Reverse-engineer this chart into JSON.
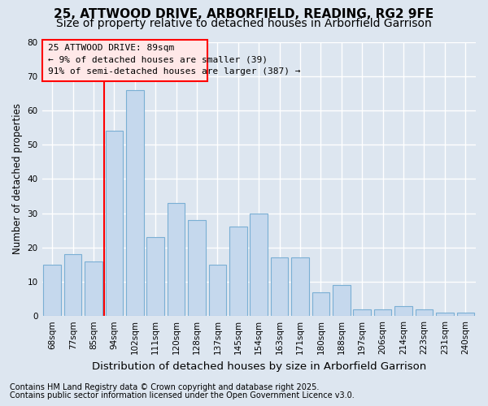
{
  "title": "25, ATTWOOD DRIVE, ARBORFIELD, READING, RG2 9FE",
  "subtitle": "Size of property relative to detached houses in Arborfield Garrison",
  "xlabel": "Distribution of detached houses by size in Arborfield Garrison",
  "ylabel": "Number of detached properties",
  "footnote1": "Contains HM Land Registry data © Crown copyright and database right 2025.",
  "footnote2": "Contains public sector information licensed under the Open Government Licence v3.0.",
  "categories": [
    "68sqm",
    "77sqm",
    "85sqm",
    "94sqm",
    "102sqm",
    "111sqm",
    "120sqm",
    "128sqm",
    "137sqm",
    "145sqm",
    "154sqm",
    "163sqm",
    "171sqm",
    "180sqm",
    "188sqm",
    "197sqm",
    "206sqm",
    "214sqm",
    "223sqm",
    "231sqm",
    "240sqm"
  ],
  "values": [
    15,
    18,
    16,
    54,
    66,
    23,
    33,
    28,
    15,
    26,
    30,
    17,
    17,
    7,
    9,
    2,
    2,
    3,
    2,
    1,
    1
  ],
  "redline_index": 2.5,
  "bar_color": "#c5d8ed",
  "bar_edge_color": "#7aafd4",
  "annotation_title": "25 ATTWOOD DRIVE: 89sqm",
  "annotation_line1": "← 9% of detached houses are smaller (39)",
  "annotation_line2": "91% of semi-detached houses are larger (387) →",
  "annotation_box_facecolor": "#ffe8e8",
  "annotation_box_edgecolor": "red",
  "ylim": [
    0,
    80
  ],
  "yticks": [
    0,
    10,
    20,
    30,
    40,
    50,
    60,
    70,
    80
  ],
  "background_color": "#dde6f0",
  "plot_background": "#dde6f0",
  "grid_color": "white",
  "title_fontsize": 11,
  "subtitle_fontsize": 10,
  "xlabel_fontsize": 9.5,
  "ylabel_fontsize": 8.5,
  "tick_fontsize": 7.5,
  "annotation_fontsize": 8,
  "footnote_fontsize": 7
}
